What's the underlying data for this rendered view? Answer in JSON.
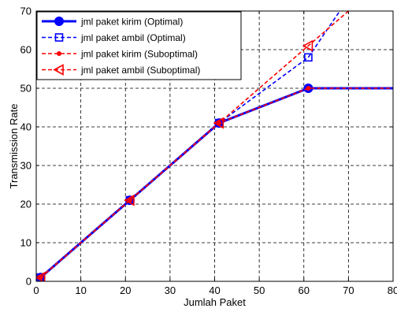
{
  "chart_data": {
    "type": "line",
    "title": "",
    "xlabel": "Jumlah Paket",
    "ylabel": "Transmission Rate",
    "xlim": [
      0,
      80
    ],
    "ylim": [
      0,
      70
    ],
    "xticks": [
      "0",
      "10",
      "20",
      "30",
      "40",
      "50",
      "60",
      "70",
      "80"
    ],
    "yticks": [
      "0",
      "10",
      "20",
      "30",
      "40",
      "50",
      "60",
      "70"
    ],
    "grid": true,
    "legend_position": "top-left",
    "series": [
      {
        "name": "jml paket kirim (Optimal)",
        "color": "#0000ff",
        "line": "solid",
        "marker": "circle",
        "x": [
          1,
          21,
          41,
          61,
          81
        ],
        "y": [
          1,
          21,
          41,
          50,
          50
        ]
      },
      {
        "name": "jml paket ambil (Optimal)",
        "color": "#0000ff",
        "line": "dashed",
        "marker": "square",
        "x": [
          1,
          21,
          41,
          61,
          71
        ],
        "y": [
          1,
          21,
          41,
          58,
          75
        ]
      },
      {
        "name": "jml paket kirim (Suboptimal)",
        "color": "#ff0000",
        "line": "dashed",
        "marker": "dot",
        "x": [
          1,
          21,
          41,
          61,
          81
        ],
        "y": [
          1,
          21,
          41,
          50,
          50
        ]
      },
      {
        "name": "jml paket ambil (Suboptimal)",
        "color": "#ff0000",
        "line": "dashed",
        "marker": "triangle-left",
        "x": [
          1,
          21,
          41,
          61,
          71
        ],
        "y": [
          1,
          21,
          41,
          61,
          71
        ]
      }
    ]
  }
}
